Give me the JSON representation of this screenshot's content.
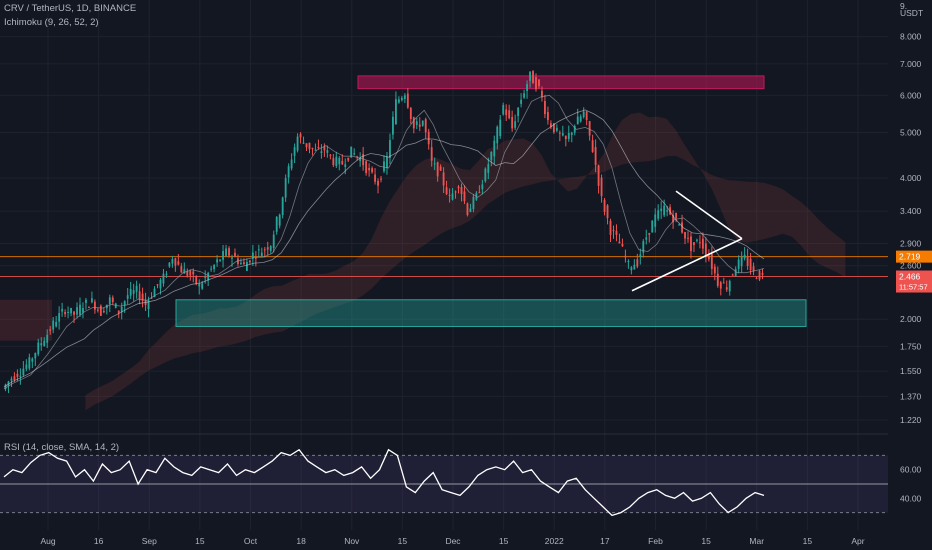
{
  "header": {
    "symbol_line": "CRV / TetherUS, 1D, BINANCE",
    "indicator_line": "Ichimoku (9, 26, 52, 2)",
    "rsi_line": "RSI (14, close, SMA, 14, 2)"
  },
  "chart_data": {
    "type": "candlestick",
    "symbol": "CRV / TetherUS",
    "timeframe": "1D",
    "exchange": "BINANCE",
    "price_axis": {
      "unit": "USDT",
      "scale": "log",
      "top_label": "9.",
      "ticks": [
        "8.000",
        "7.000",
        "6.000",
        "5.000",
        "4.000",
        "3.400",
        "2.900",
        "2.600",
        "2.000",
        "1.750",
        "1.550",
        "1.370",
        "1.220"
      ]
    },
    "time_axis": {
      "labels": [
        "Aug",
        "16",
        "Sep",
        "15",
        "Oct",
        "18",
        "Nov",
        "15",
        "Dec",
        "15",
        "2022",
        "17",
        "Feb",
        "15",
        "Mar",
        "15",
        "Apr"
      ]
    },
    "price_labels": [
      {
        "value": "2.719",
        "color": "#f57c00"
      },
      {
        "value": "2.466",
        "color": "#ef5350"
      },
      {
        "value": "11:57:57",
        "color": "#ef5350"
      }
    ],
    "horizontal_lines": [
      {
        "price": 2.719,
        "color": "#f57c00"
      },
      {
        "price": 2.466,
        "color": "#ef5350"
      }
    ],
    "zones": [
      {
        "kind": "resistance",
        "color": "#c2185b",
        "price_top": 6.6,
        "price_bottom": 6.2
      },
      {
        "kind": "support",
        "color": "#26a69a",
        "price_top": 2.2,
        "price_bottom": 1.93
      }
    ],
    "triangle": {
      "apex_price": 2.97,
      "upper_start_price": 3.75,
      "lower_start_price": 2.3
    },
    "candle_colors": {
      "up": "#26a69a",
      "down": "#ef5350"
    },
    "price_path": [
      1.42,
      1.5,
      1.55,
      1.62,
      1.75,
      1.86,
      2.0,
      2.1,
      2.05,
      2.15,
      2.18,
      2.07,
      2.2,
      2.08,
      2.25,
      2.3,
      2.15,
      2.32,
      2.45,
      2.72,
      2.55,
      2.48,
      2.35,
      2.5,
      2.65,
      2.78,
      2.7,
      2.6,
      2.75,
      2.8,
      2.9,
      3.4,
      4.2,
      4.9,
      4.7,
      4.55,
      4.6,
      4.35,
      4.3,
      4.55,
      4.4,
      4.1,
      3.9,
      4.4,
      5.8,
      6.1,
      5.1,
      5.3,
      4.3,
      4.05,
      3.6,
      3.9,
      3.4,
      3.65,
      4.1,
      4.7,
      5.7,
      5.1,
      5.9,
      6.6,
      6.2,
      5.3,
      5.0,
      4.8,
      5.2,
      5.5,
      4.6,
      3.6,
      3.1,
      2.9,
      2.6,
      2.65,
      3.0,
      3.3,
      3.45,
      3.3,
      3.1,
      2.85,
      2.95,
      2.7,
      2.4,
      2.35,
      2.6,
      2.7,
      2.5,
      2.466
    ],
    "rsi": {
      "length": 14,
      "upper_band": 70,
      "lower_band": 30,
      "ticks": [
        "60.00",
        "40.00"
      ],
      "values": [
        55,
        60,
        58,
        65,
        70,
        72,
        68,
        66,
        55,
        60,
        52,
        64,
        58,
        60,
        66,
        50,
        60,
        58,
        68,
        62,
        58,
        56,
        62,
        60,
        58,
        64,
        56,
        60,
        58,
        62,
        66,
        72,
        70,
        74,
        66,
        62,
        58,
        60,
        56,
        58,
        62,
        54,
        60,
        74,
        70,
        48,
        44,
        52,
        58,
        46,
        44,
        42,
        48,
        56,
        60,
        62,
        60,
        66,
        58,
        60,
        52,
        48,
        44,
        52,
        54,
        46,
        40,
        34,
        28,
        30,
        34,
        40,
        44,
        46,
        42,
        40,
        44,
        38,
        40,
        44,
        36,
        30,
        34,
        40,
        44,
        42
      ]
    },
    "grid": true
  }
}
